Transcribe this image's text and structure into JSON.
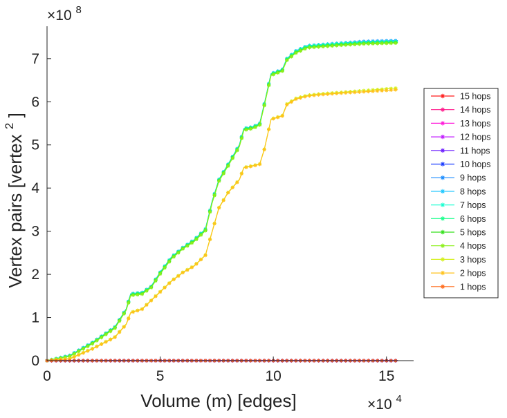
{
  "chart_data": {
    "type": "line",
    "xlabel": "Volume (m) [edges]",
    "ylabel": "Vertex pairs [vertex",
    "ylabel_superscript": "2",
    "ylabel_close": "]",
    "x_multiplier": {
      "base": "×10",
      "exp": "4"
    },
    "y_multiplier": {
      "base": "×10",
      "exp": "8"
    },
    "xlim": [
      0,
      16.2
    ],
    "ylim": [
      0,
      7.75
    ],
    "xticks": [
      0,
      5,
      10,
      15
    ],
    "xtick_labels": [
      "0",
      "5",
      "10",
      "15"
    ],
    "yticks": [
      0,
      1,
      2,
      3,
      4,
      5,
      6,
      7
    ],
    "ytick_labels": [
      "0",
      "1",
      "2",
      "3",
      "4",
      "5",
      "6",
      "7"
    ],
    "grid": false,
    "legend_position": "right",
    "legend": [
      "15 hops",
      "14 hops",
      "13 hops",
      "12 hops",
      "11 hops",
      "10 hops",
      "9 hops",
      "8 hops",
      "7 hops",
      "6 hops",
      "5 hops",
      "4 hops",
      "3 hops",
      "2 hops",
      "1 hops"
    ],
    "series": [
      {
        "name": "15 hops",
        "color": "#ff1a1a",
        "values": [
          [
            0,
            0
          ],
          [
            15.5,
            0
          ]
        ]
      },
      {
        "name": "14 hops",
        "color": "#ff1a8c",
        "values": [
          [
            0,
            0
          ],
          [
            15.5,
            0
          ]
        ]
      },
      {
        "name": "13 hops",
        "color": "#ff1ad9",
        "values": [
          [
            0,
            0
          ],
          [
            15.5,
            0
          ]
        ]
      },
      {
        "name": "12 hops",
        "color": "#c01aff",
        "values": [
          [
            0,
            0
          ],
          [
            15.5,
            0
          ]
        ]
      },
      {
        "name": "11 hops",
        "color": "#6a1aff",
        "values": [
          [
            0,
            0
          ],
          [
            15.5,
            0
          ]
        ]
      },
      {
        "name": "10 hops",
        "color": "#1a3cff",
        "values": [
          [
            0,
            0
          ],
          [
            15.5,
            0
          ]
        ]
      },
      {
        "name": "9 hops",
        "color": "#1a8cff",
        "values": [
          [
            0,
            0
          ],
          [
            1,
            0.12
          ],
          [
            2,
            0.42
          ],
          [
            3,
            0.78
          ],
          [
            3.5,
            1.2
          ],
          [
            3.7,
            1.55
          ],
          [
            4.2,
            1.58
          ],
          [
            4.6,
            1.72
          ],
          [
            5,
            2.05
          ],
          [
            5.5,
            2.4
          ],
          [
            6,
            2.62
          ],
          [
            6.5,
            2.8
          ],
          [
            7,
            3.05
          ],
          [
            7.3,
            3.7
          ],
          [
            7.6,
            4.2
          ],
          [
            8,
            4.55
          ],
          [
            8.5,
            5.0
          ],
          [
            8.7,
            5.38
          ],
          [
            9.1,
            5.42
          ],
          [
            9.4,
            5.5
          ],
          [
            9.6,
            5.95
          ],
          [
            9.9,
            6.65
          ],
          [
            10.4,
            6.75
          ],
          [
            10.6,
            7.0
          ],
          [
            11,
            7.18
          ],
          [
            11.5,
            7.3
          ],
          [
            12,
            7.32
          ],
          [
            13,
            7.36
          ],
          [
            14,
            7.4
          ],
          [
            15.5,
            7.42
          ]
        ]
      },
      {
        "name": "8 hops",
        "color": "#1ac6ff",
        "values": [
          [
            0,
            0
          ],
          [
            1,
            0.12
          ],
          [
            2,
            0.42
          ],
          [
            3,
            0.78
          ],
          [
            3.5,
            1.2
          ],
          [
            3.7,
            1.55
          ],
          [
            4.2,
            1.58
          ],
          [
            4.6,
            1.72
          ],
          [
            5,
            2.05
          ],
          [
            5.5,
            2.4
          ],
          [
            6,
            2.62
          ],
          [
            6.5,
            2.8
          ],
          [
            7,
            3.05
          ],
          [
            7.3,
            3.7
          ],
          [
            7.6,
            4.2
          ],
          [
            8,
            4.55
          ],
          [
            8.5,
            5.0
          ],
          [
            8.7,
            5.38
          ],
          [
            9.1,
            5.42
          ],
          [
            9.4,
            5.5
          ],
          [
            9.6,
            5.95
          ],
          [
            9.9,
            6.65
          ],
          [
            10.4,
            6.75
          ],
          [
            10.6,
            7.0
          ],
          [
            11,
            7.18
          ],
          [
            11.5,
            7.3
          ],
          [
            12,
            7.32
          ],
          [
            13,
            7.36
          ],
          [
            14,
            7.39
          ],
          [
            15.5,
            7.41
          ]
        ]
      },
      {
        "name": "7 hops",
        "color": "#1affd1",
        "values": [
          [
            0,
            0
          ],
          [
            1,
            0.11
          ],
          [
            2,
            0.41
          ],
          [
            3,
            0.77
          ],
          [
            3.5,
            1.19
          ],
          [
            3.7,
            1.54
          ],
          [
            4.2,
            1.57
          ],
          [
            4.6,
            1.71
          ],
          [
            5,
            2.04
          ],
          [
            5.5,
            2.39
          ],
          [
            6,
            2.61
          ],
          [
            6.5,
            2.79
          ],
          [
            7,
            3.04
          ],
          [
            7.3,
            3.69
          ],
          [
            7.6,
            4.19
          ],
          [
            8,
            4.54
          ],
          [
            8.5,
            4.99
          ],
          [
            8.7,
            5.37
          ],
          [
            9.1,
            5.41
          ],
          [
            9.4,
            5.49
          ],
          [
            9.6,
            5.94
          ],
          [
            9.9,
            6.64
          ],
          [
            10.4,
            6.74
          ],
          [
            10.6,
            6.99
          ],
          [
            11,
            7.17
          ],
          [
            11.5,
            7.29
          ],
          [
            12,
            7.31
          ],
          [
            13,
            7.35
          ],
          [
            14,
            7.38
          ],
          [
            15.5,
            7.4
          ]
        ]
      },
      {
        "name": "6 hops",
        "color": "#1aff8c",
        "values": [
          [
            0,
            0
          ],
          [
            1,
            0.11
          ],
          [
            2,
            0.41
          ],
          [
            3,
            0.77
          ],
          [
            3.5,
            1.19
          ],
          [
            3.7,
            1.54
          ],
          [
            4.2,
            1.57
          ],
          [
            4.6,
            1.71
          ],
          [
            5,
            2.04
          ],
          [
            5.5,
            2.39
          ],
          [
            6,
            2.61
          ],
          [
            6.5,
            2.79
          ],
          [
            7,
            3.04
          ],
          [
            7.3,
            3.69
          ],
          [
            7.6,
            4.19
          ],
          [
            8,
            4.54
          ],
          [
            8.5,
            4.99
          ],
          [
            8.7,
            5.37
          ],
          [
            9.1,
            5.41
          ],
          [
            9.4,
            5.49
          ],
          [
            9.6,
            5.94
          ],
          [
            9.9,
            6.64
          ],
          [
            10.4,
            6.74
          ],
          [
            10.6,
            6.99
          ],
          [
            11,
            7.16
          ],
          [
            11.5,
            7.28
          ],
          [
            12,
            7.3
          ],
          [
            13,
            7.34
          ],
          [
            14,
            7.37
          ],
          [
            15.5,
            7.39
          ]
        ]
      },
      {
        "name": "5 hops",
        "color": "#33e01a",
        "values": [
          [
            0,
            0
          ],
          [
            1,
            0.1
          ],
          [
            2,
            0.4
          ],
          [
            3,
            0.76
          ],
          [
            3.5,
            1.18
          ],
          [
            3.7,
            1.52
          ],
          [
            4.2,
            1.55
          ],
          [
            4.6,
            1.7
          ],
          [
            5,
            2.02
          ],
          [
            5.5,
            2.37
          ],
          [
            6,
            2.6
          ],
          [
            6.5,
            2.77
          ],
          [
            7,
            3.02
          ],
          [
            7.3,
            3.67
          ],
          [
            7.6,
            4.17
          ],
          [
            8,
            4.52
          ],
          [
            8.5,
            4.97
          ],
          [
            8.7,
            5.35
          ],
          [
            9.1,
            5.39
          ],
          [
            9.4,
            5.47
          ],
          [
            9.6,
            5.92
          ],
          [
            9.9,
            6.62
          ],
          [
            10.4,
            6.72
          ],
          [
            10.6,
            6.97
          ],
          [
            11,
            7.14
          ],
          [
            11.5,
            7.26
          ],
          [
            12,
            7.28
          ],
          [
            13,
            7.32
          ],
          [
            14,
            7.35
          ],
          [
            15.5,
            7.37
          ]
        ]
      },
      {
        "name": "4 hops",
        "color": "#8cf01a",
        "values": [
          [
            0,
            0
          ],
          [
            1,
            0.1
          ],
          [
            2,
            0.39
          ],
          [
            3,
            0.75
          ],
          [
            3.5,
            1.17
          ],
          [
            3.7,
            1.51
          ],
          [
            4.2,
            1.54
          ],
          [
            4.6,
            1.69
          ],
          [
            5,
            2.01
          ],
          [
            5.5,
            2.36
          ],
          [
            6,
            2.59
          ],
          [
            6.5,
            2.76
          ],
          [
            7,
            3.01
          ],
          [
            7.3,
            3.66
          ],
          [
            7.6,
            4.16
          ],
          [
            8,
            4.51
          ],
          [
            8.5,
            4.96
          ],
          [
            8.7,
            5.34
          ],
          [
            9.1,
            5.38
          ],
          [
            9.4,
            5.46
          ],
          [
            9.6,
            5.91
          ],
          [
            9.9,
            6.61
          ],
          [
            10.4,
            6.71
          ],
          [
            10.6,
            6.96
          ],
          [
            11,
            7.13
          ],
          [
            11.5,
            7.25
          ],
          [
            12,
            7.27
          ],
          [
            13,
            7.31
          ],
          [
            14,
            7.34
          ],
          [
            15.5,
            7.36
          ]
        ]
      },
      {
        "name": "3 hops",
        "color": "#d4f01a",
        "values": [
          [
            0,
            0
          ],
          [
            1,
            0.05
          ],
          [
            2,
            0.28
          ],
          [
            3,
            0.55
          ],
          [
            3.5,
            0.85
          ],
          [
            3.7,
            1.12
          ],
          [
            4.2,
            1.2
          ],
          [
            4.6,
            1.4
          ],
          [
            5,
            1.6
          ],
          [
            5.5,
            1.85
          ],
          [
            6,
            2.05
          ],
          [
            6.5,
            2.2
          ],
          [
            7,
            2.45
          ],
          [
            7.3,
            3.0
          ],
          [
            7.6,
            3.55
          ],
          [
            8,
            3.9
          ],
          [
            8.5,
            4.2
          ],
          [
            8.7,
            4.48
          ],
          [
            9.1,
            4.52
          ],
          [
            9.4,
            4.56
          ],
          [
            9.6,
            4.9
          ],
          [
            9.9,
            5.6
          ],
          [
            10.4,
            5.68
          ],
          [
            10.6,
            5.95
          ],
          [
            11,
            6.08
          ],
          [
            11.5,
            6.15
          ],
          [
            12,
            6.18
          ],
          [
            13,
            6.22
          ],
          [
            14,
            6.26
          ],
          [
            15.5,
            6.32
          ]
        ]
      },
      {
        "name": "2 hops",
        "color": "#ffc21a",
        "values": [
          [
            0,
            0
          ],
          [
            1,
            0.04
          ],
          [
            2,
            0.27
          ],
          [
            3,
            0.54
          ],
          [
            3.5,
            0.84
          ],
          [
            3.7,
            1.11
          ],
          [
            4.2,
            1.19
          ],
          [
            4.6,
            1.39
          ],
          [
            5,
            1.59
          ],
          [
            5.5,
            1.84
          ],
          [
            6,
            2.04
          ],
          [
            6.5,
            2.19
          ],
          [
            7,
            2.44
          ],
          [
            7.3,
            2.99
          ],
          [
            7.6,
            3.54
          ],
          [
            8,
            3.89
          ],
          [
            8.5,
            4.19
          ],
          [
            8.7,
            4.47
          ],
          [
            9.1,
            4.51
          ],
          [
            9.4,
            4.55
          ],
          [
            9.6,
            4.89
          ],
          [
            9.9,
            5.59
          ],
          [
            10.4,
            5.67
          ],
          [
            10.6,
            5.93
          ],
          [
            11,
            6.06
          ],
          [
            11.5,
            6.13
          ],
          [
            12,
            6.16
          ],
          [
            13,
            6.2
          ],
          [
            14,
            6.23
          ],
          [
            15.5,
            6.28
          ]
        ]
      },
      {
        "name": "1 hops",
        "color": "#ff6a1a",
        "values": [
          [
            0,
            0
          ],
          [
            15.5,
            0
          ]
        ]
      }
    ]
  }
}
